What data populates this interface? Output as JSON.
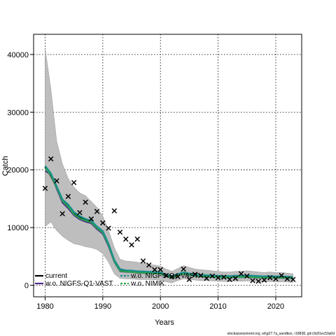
{
  "chart_data": {
    "type": "line",
    "xlabel": "Years",
    "ylabel": "Catch",
    "xlim": [
      1978,
      2024.5
    ],
    "ylim": [
      -2000,
      43500
    ],
    "x_ticks": [
      1980,
      1990,
      2000,
      2010,
      2020
    ],
    "y_ticks": [
      0,
      10000,
      20000,
      30000,
      40000
    ],
    "grid": true,
    "legend_placement": "bottom-left",
    "colors": {
      "band": "#bebebe",
      "current": "#000000",
      "wo_nigfs_q1_vast": "#4b2c8a",
      "wo_nigfs_q4_vast": "#1a8f8f",
      "wo_nimik": "#2aa84a",
      "observed": "#000000"
    },
    "years": [
      1980,
      1981,
      1982,
      1983,
      1984,
      1985,
      1986,
      1987,
      1988,
      1989,
      1990,
      1991,
      1992,
      1993,
      1994,
      1995,
      1996,
      1997,
      1998,
      1999,
      2000,
      2001,
      2002,
      2003,
      2004,
      2005,
      2006,
      2007,
      2008,
      2009,
      2010,
      2011,
      2012,
      2013,
      2014,
      2015,
      2016,
      2017,
      2018,
      2019,
      2020,
      2021,
      2022,
      2023
    ],
    "band": {
      "upper": [
        41000,
        34000,
        25000,
        21000,
        18500,
        17000,
        16000,
        15500,
        14500,
        13500,
        12000,
        9500,
        6500,
        4500,
        4200,
        4100,
        4000,
        3800,
        3600,
        3500,
        3300,
        2800,
        2400,
        2900,
        3400,
        3100,
        2800,
        2700,
        2600,
        2500,
        2400,
        2300,
        2300,
        2400,
        2400,
        2500,
        2400,
        2300,
        2200,
        2300,
        2200,
        2200,
        2100,
        2000
      ],
      "lower": [
        10200,
        11000,
        9500,
        8500,
        7800,
        7200,
        7000,
        6700,
        6500,
        6200,
        5500,
        4000,
        2000,
        1200,
        1100,
        1100,
        1000,
        1000,
        1000,
        950,
        900,
        600,
        400,
        800,
        1100,
        1000,
        900,
        800,
        800,
        750,
        700,
        650,
        650,
        700,
        700,
        750,
        700,
        650,
        600,
        650,
        600,
        600,
        550,
        500
      ]
    },
    "series": [
      {
        "name": "current",
        "values": [
          20500,
          19000,
          17000,
          14800,
          13800,
          12500,
          11800,
          11300,
          11000,
          10000,
          9200,
          7000,
          4200,
          2600,
          2400,
          2400,
          2300,
          2250,
          2200,
          2150,
          2100,
          1700,
          1400,
          1800,
          2100,
          1900,
          1700,
          1650,
          1600,
          1550,
          1500,
          1450,
          1450,
          1500,
          1500,
          1550,
          1500,
          1450,
          1400,
          1450,
          1400,
          1400,
          1350,
          1300
        ]
      },
      {
        "name": "w.o. NIGFS-Q1-VAST",
        "values": [
          19800,
          19200,
          16700,
          14300,
          13300,
          12100,
          11400,
          11000,
          10700,
          9700,
          8900,
          6700,
          4000,
          2400,
          2300,
          2250,
          2150,
          2100,
          2050,
          2000,
          1950,
          1550,
          1250,
          1650,
          1950,
          1750,
          1550,
          1500,
          1450,
          1400,
          1350,
          1300,
          1300,
          1350,
          1350,
          1400,
          1350,
          1300,
          1250,
          1300,
          1250,
          1250,
          1200,
          1150
        ]
      },
      {
        "name": "w.o. NIGFS-Q4-VAST",
        "values": [
          20700,
          19400,
          17200,
          14900,
          14000,
          12700,
          12000,
          11500,
          11200,
          10200,
          9400,
          7200,
          4400,
          2800,
          2600,
          2550,
          2450,
          2400,
          2350,
          2300,
          2250,
          1850,
          1550,
          1950,
          2250,
          2050,
          1850,
          1800,
          1750,
          1700,
          1650,
          1600,
          1600,
          1650,
          1650,
          1700,
          1650,
          1600,
          1550,
          1600,
          1550,
          1550,
          1500,
          1450
        ]
      },
      {
        "name": "w.o. NIMIK",
        "values": [
          20300,
          19100,
          16900,
          14600,
          13600,
          12300,
          11600,
          11200,
          10900,
          9900,
          9100,
          6900,
          4100,
          2500,
          2350,
          2300,
          2200,
          2150,
          2100,
          2050,
          2000,
          1600,
          1300,
          1700,
          2000,
          1800,
          1600,
          1550,
          1500,
          1450,
          1400,
          1350,
          1350,
          1400,
          1400,
          1450,
          1400,
          1350,
          1300,
          1350,
          1300,
          1300,
          1250,
          1200
        ]
      }
    ],
    "observed": {
      "x": [
        1980,
        1981,
        1982,
        1983,
        1984,
        1985,
        1986,
        1987,
        1988,
        1989,
        1990,
        1991,
        1992,
        1993,
        1994,
        1995,
        1996,
        1997,
        1998,
        1999,
        2000,
        2001,
        2002,
        2003,
        2004,
        2005,
        2006,
        2007,
        2008,
        2009,
        2010,
        2011,
        2012,
        2013,
        2014,
        2015,
        2016,
        2017,
        2018,
        2019,
        2020,
        2021,
        2022,
        2023
      ],
      "y": [
        16800,
        21900,
        18100,
        12400,
        15400,
        17800,
        12600,
        14400,
        11500,
        12800,
        10800,
        9900,
        12900,
        9200,
        8000,
        7000,
        8000,
        4200,
        3500,
        2700,
        2700,
        1700,
        1500,
        1500,
        2800,
        1000,
        1900,
        1700,
        1200,
        1600,
        1300,
        1400,
        1000,
        1200,
        2000,
        1600,
        800,
        700,
        900,
        1300,
        1100,
        1700,
        1100,
        1000
      ]
    },
    "legend": [
      {
        "label": "current",
        "style": "solid",
        "color_key": "current"
      },
      {
        "label": "w.o. NIGFS-Q4-VAST",
        "style": "dashed",
        "color_key": "wo_nigfs_q4_vast"
      },
      {
        "label": "w.o. NIGFS-Q1-VAST",
        "style": "solid",
        "color_key": "wo_nigfs_q1_vast"
      },
      {
        "label": "w.o. NIMIK",
        "style": "dashed",
        "color_key": "wo_nimik"
      }
    ]
  },
  "footer_text": "stockassessment.org, whg27.7a_sandbox, r18838, git:c9c81ec53a0d"
}
